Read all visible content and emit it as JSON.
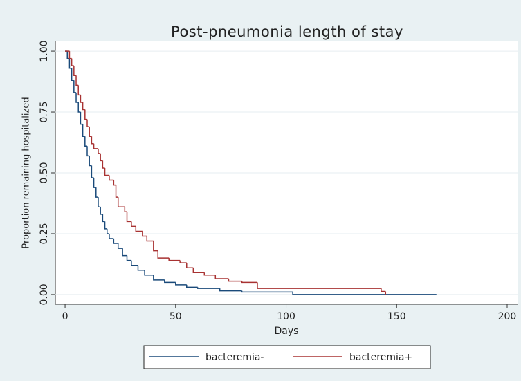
{
  "chart_data": {
    "type": "step",
    "title": "Post-pneumonia length of stay",
    "x_label": "Days",
    "y_label": "Proportion remaining hospitalized",
    "xlim": [
      -4.4,
      204.7
    ],
    "ylim": [
      -0.04,
      1.04
    ],
    "xticks": [
      0,
      50,
      100,
      150,
      200
    ],
    "yticks": [
      {
        "value": 0,
        "label": "0.00"
      },
      0.25,
      {
        "value": 0.5,
        "label": "0.50"
      },
      0.75,
      {
        "value": 1,
        "label": "1.00"
      }
    ],
    "grid": true,
    "legend": "bottom",
    "series": [
      {
        "name": "bacteremia-",
        "color": "#1a4a7a",
        "x": [
          0,
          1,
          2,
          3,
          4,
          5,
          6,
          7,
          8,
          9,
          10,
          11,
          12,
          13,
          14,
          15,
          16,
          17,
          18,
          19,
          20,
          22,
          24,
          26,
          28,
          30,
          33,
          36,
          40,
          45,
          50,
          55,
          60,
          70,
          80,
          103,
          168
        ],
        "values": [
          1.0,
          0.97,
          0.93,
          0.88,
          0.83,
          0.79,
          0.75,
          0.7,
          0.65,
          0.61,
          0.57,
          0.53,
          0.48,
          0.44,
          0.4,
          0.36,
          0.33,
          0.3,
          0.27,
          0.25,
          0.23,
          0.21,
          0.19,
          0.16,
          0.14,
          0.12,
          0.1,
          0.08,
          0.06,
          0.05,
          0.04,
          0.03,
          0.025,
          0.015,
          0.01,
          0.0,
          0.0
        ]
      },
      {
        "name": "bacteremia+",
        "color": "#a83232",
        "x": [
          0,
          2,
          3,
          4,
          5,
          6,
          7,
          8,
          9,
          10,
          11,
          12,
          13,
          15,
          16,
          17,
          18,
          20,
          22,
          23,
          24,
          27,
          28,
          30,
          32,
          35,
          37,
          40,
          42,
          47,
          52,
          55,
          58,
          63,
          68,
          74,
          80,
          87,
          143,
          145
        ],
        "values": [
          1.0,
          0.97,
          0.94,
          0.9,
          0.86,
          0.82,
          0.79,
          0.76,
          0.72,
          0.69,
          0.65,
          0.62,
          0.6,
          0.58,
          0.55,
          0.52,
          0.49,
          0.47,
          0.45,
          0.4,
          0.36,
          0.34,
          0.3,
          0.28,
          0.26,
          0.24,
          0.22,
          0.18,
          0.15,
          0.14,
          0.13,
          0.11,
          0.09,
          0.08,
          0.065,
          0.055,
          0.05,
          0.025,
          0.0125,
          0.0
        ]
      }
    ]
  }
}
